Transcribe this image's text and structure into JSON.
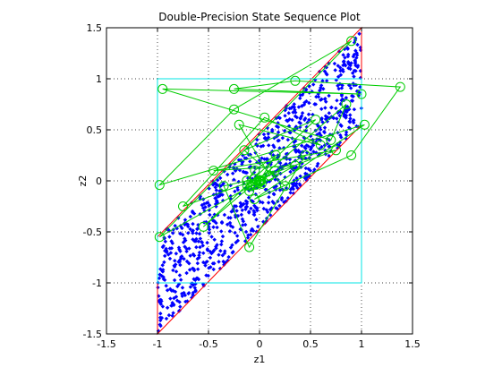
{
  "chart_data": {
    "type": "scatter",
    "title": "Double-Precision State Sequence Plot",
    "xlabel": "z1",
    "ylabel": "z2",
    "xlim": [
      -1.5,
      1.5
    ],
    "ylim": [
      -1.5,
      1.5
    ],
    "xticks": [
      -1.5,
      -1,
      -0.5,
      0,
      0.5,
      1,
      1.5
    ],
    "yticks": [
      -1.5,
      -1,
      -0.5,
      0,
      0.5,
      1,
      1.5
    ],
    "xtick_labels": [
      "-1.5",
      "-1",
      "-0.5",
      "0",
      "0.5",
      "1",
      "1.5"
    ],
    "ytick_labels": [
      "-1.5",
      "-1",
      "-0.5",
      "0",
      "0.5",
      "1",
      "1.5"
    ],
    "grid": true,
    "colors": {
      "points": "#0000ff",
      "trajectory": "#00cc00",
      "boundary": "#ff0000",
      "unit_square": "#00e5e5"
    },
    "unit_square": [
      [
        -1,
        -1
      ],
      [
        1,
        -1
      ],
      [
        1,
        1
      ],
      [
        -1,
        1
      ]
    ],
    "boundary_polygon": [
      [
        -1,
        -1.5
      ],
      [
        -1,
        -0.55
      ],
      [
        1,
        1.5
      ],
      [
        1,
        0.55
      ]
    ],
    "sequence": [
      [
        0.25,
        -0.05
      ],
      [
        -0.15,
        0.3
      ],
      [
        0.55,
        0.6
      ],
      [
        -0.55,
        -0.45
      ],
      [
        0.85,
        0.75
      ],
      [
        0.7,
        0.4
      ],
      [
        -0.95,
        0.9
      ],
      [
        1.0,
        0.85
      ],
      [
        -0.25,
        0.9
      ],
      [
        0.35,
        0.98
      ],
      [
        1.38,
        0.92
      ],
      [
        0.9,
        0.25
      ],
      [
        -0.05,
        -0.18
      ],
      [
        1.03,
        0.55
      ],
      [
        -0.98,
        -0.04
      ],
      [
        -0.25,
        0.7
      ],
      [
        0.9,
        1.37
      ],
      [
        -0.98,
        -0.55
      ],
      [
        0.45,
        0.25
      ],
      [
        -0.1,
        -0.65
      ],
      [
        -0.35,
        -0.05
      ],
      [
        0.1,
        0.05
      ],
      [
        -0.2,
        0.55
      ],
      [
        0.6,
        0.35
      ],
      [
        0.05,
        0.62
      ],
      [
        -0.75,
        -0.25
      ],
      [
        0.75,
        0.3
      ],
      [
        -0.45,
        0.1
      ],
      [
        0.35,
        0.15
      ],
      [
        -0.1,
        -0.1
      ],
      [
        0.15,
        0.1
      ],
      [
        -0.05,
        0.02
      ],
      [
        0.02,
        -0.03
      ],
      [
        0.0,
        0.0
      ]
    ]
  }
}
